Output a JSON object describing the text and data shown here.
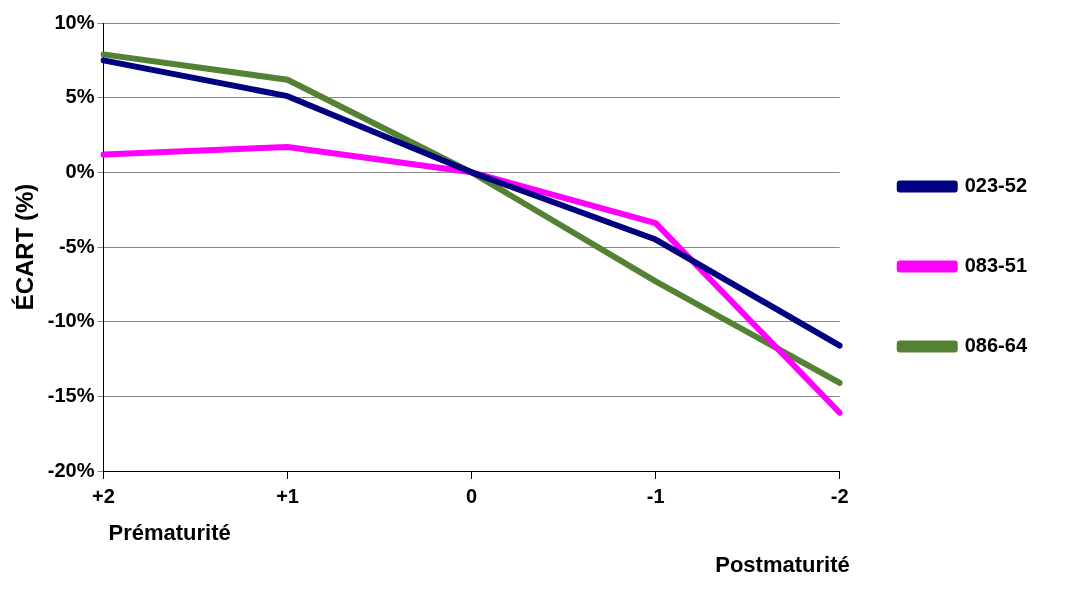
{
  "chart_data": {
    "type": "line",
    "ylabel": "ÉCART (%)",
    "annotations": [
      "Prématurité",
      "Postmaturité"
    ],
    "categories": [
      "+2",
      "+1",
      "0",
      "-1",
      "-2"
    ],
    "series": [
      {
        "name": "023-52",
        "color": "#000080",
        "values": [
          7.5,
          5.1,
          0,
          -4.5,
          -11.6
        ]
      },
      {
        "name": "083-51",
        "color": "#ff00ff",
        "values": [
          1.2,
          1.7,
          0,
          -3.4,
          -16.1
        ]
      },
      {
        "name": "086-64",
        "color": "#548235",
        "values": [
          7.9,
          6.2,
          0,
          -7.3,
          -14.1
        ]
      }
    ],
    "ylim": [
      -20,
      10
    ],
    "yticks": [
      {
        "value": -20,
        "label": "-20%"
      },
      {
        "value": -15,
        "label": "-15%"
      },
      {
        "value": -10,
        "label": "-10%"
      },
      {
        "value": -5,
        "label": "-5%"
      },
      {
        "value": 0,
        "label": "0%"
      },
      {
        "value": 5,
        "label": "5%"
      },
      {
        "value": 10,
        "label": "10%"
      }
    ],
    "grid": "y",
    "legend": "right",
    "marker": "none",
    "line_style": "solid"
  }
}
